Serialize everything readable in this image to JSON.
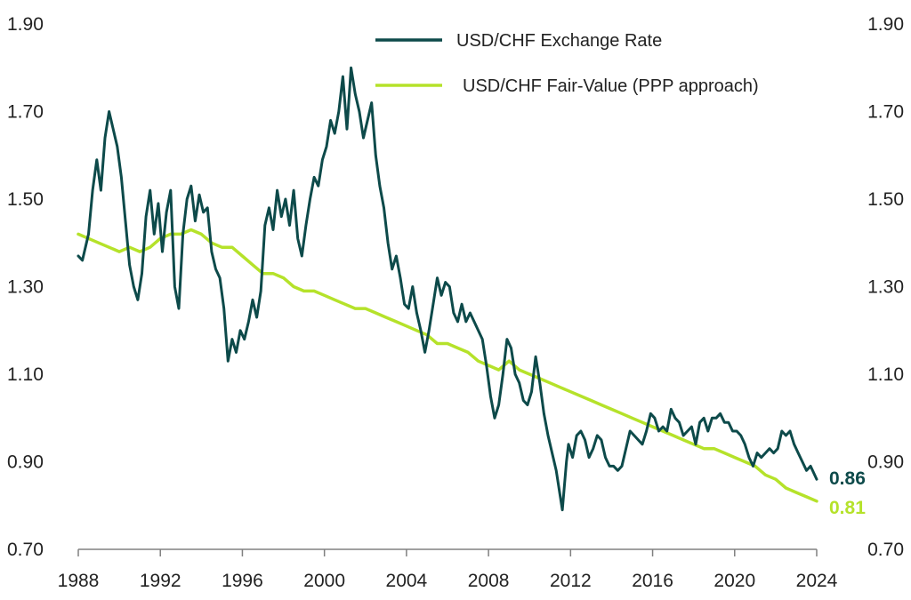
{
  "chart_data": {
    "type": "line",
    "title": "",
    "xlabel": "",
    "ylabel": "",
    "xlim": [
      1988,
      2024
    ],
    "ylim": [
      0.7,
      1.9
    ],
    "y_ticks": [
      "0.70",
      "0.90",
      "1.10",
      "1.30",
      "1.50",
      "1.70",
      "1.90"
    ],
    "x_ticks": [
      "1988",
      "1992",
      "1996",
      "2000",
      "2004",
      "2008",
      "2012",
      "2016",
      "2020",
      "2024"
    ],
    "legend_position": "top-right",
    "series": [
      {
        "name": "USD/CHF Exchange Rate",
        "color": "#0d4a4a",
        "end_label": "0.86",
        "points": [
          [
            1988.0,
            1.37
          ],
          [
            1988.2,
            1.36
          ],
          [
            1988.5,
            1.42
          ],
          [
            1988.7,
            1.52
          ],
          [
            1988.9,
            1.59
          ],
          [
            1989.1,
            1.52
          ],
          [
            1989.3,
            1.64
          ],
          [
            1989.5,
            1.7
          ],
          [
            1989.7,
            1.66
          ],
          [
            1989.9,
            1.62
          ],
          [
            1990.1,
            1.55
          ],
          [
            1990.3,
            1.45
          ],
          [
            1990.5,
            1.35
          ],
          [
            1990.7,
            1.3
          ],
          [
            1990.9,
            1.27
          ],
          [
            1991.1,
            1.33
          ],
          [
            1991.3,
            1.46
          ],
          [
            1991.5,
            1.52
          ],
          [
            1991.7,
            1.42
          ],
          [
            1991.9,
            1.49
          ],
          [
            1992.1,
            1.38
          ],
          [
            1992.3,
            1.47
          ],
          [
            1992.5,
            1.52
          ],
          [
            1992.7,
            1.3
          ],
          [
            1992.9,
            1.25
          ],
          [
            1993.1,
            1.42
          ],
          [
            1993.3,
            1.5
          ],
          [
            1993.5,
            1.53
          ],
          [
            1993.7,
            1.45
          ],
          [
            1993.9,
            1.51
          ],
          [
            1994.1,
            1.47
          ],
          [
            1994.3,
            1.48
          ],
          [
            1994.5,
            1.38
          ],
          [
            1994.7,
            1.34
          ],
          [
            1994.9,
            1.32
          ],
          [
            1995.1,
            1.25
          ],
          [
            1995.3,
            1.13
          ],
          [
            1995.5,
            1.18
          ],
          [
            1995.7,
            1.15
          ],
          [
            1995.9,
            1.2
          ],
          [
            1996.1,
            1.18
          ],
          [
            1996.3,
            1.22
          ],
          [
            1996.5,
            1.27
          ],
          [
            1996.7,
            1.23
          ],
          [
            1996.9,
            1.29
          ],
          [
            1997.1,
            1.44
          ],
          [
            1997.3,
            1.48
          ],
          [
            1997.5,
            1.43
          ],
          [
            1997.7,
            1.52
          ],
          [
            1997.9,
            1.46
          ],
          [
            1998.1,
            1.5
          ],
          [
            1998.3,
            1.44
          ],
          [
            1998.5,
            1.52
          ],
          [
            1998.7,
            1.41
          ],
          [
            1998.9,
            1.37
          ],
          [
            1999.1,
            1.44
          ],
          [
            1999.3,
            1.5
          ],
          [
            1999.5,
            1.55
          ],
          [
            1999.7,
            1.53
          ],
          [
            1999.9,
            1.59
          ],
          [
            2000.1,
            1.62
          ],
          [
            2000.3,
            1.68
          ],
          [
            2000.5,
            1.65
          ],
          [
            2000.7,
            1.7
          ],
          [
            2000.9,
            1.78
          ],
          [
            2001.1,
            1.66
          ],
          [
            2001.3,
            1.8
          ],
          [
            2001.5,
            1.74
          ],
          [
            2001.7,
            1.7
          ],
          [
            2001.9,
            1.64
          ],
          [
            2002.1,
            1.68
          ],
          [
            2002.3,
            1.72
          ],
          [
            2002.5,
            1.6
          ],
          [
            2002.7,
            1.53
          ],
          [
            2002.9,
            1.48
          ],
          [
            2003.1,
            1.4
          ],
          [
            2003.3,
            1.34
          ],
          [
            2003.5,
            1.37
          ],
          [
            2003.7,
            1.32
          ],
          [
            2003.9,
            1.26
          ],
          [
            2004.1,
            1.25
          ],
          [
            2004.3,
            1.3
          ],
          [
            2004.5,
            1.24
          ],
          [
            2004.7,
            1.2
          ],
          [
            2004.9,
            1.15
          ],
          [
            2005.1,
            1.2
          ],
          [
            2005.3,
            1.26
          ],
          [
            2005.5,
            1.32
          ],
          [
            2005.7,
            1.28
          ],
          [
            2005.9,
            1.31
          ],
          [
            2006.1,
            1.3
          ],
          [
            2006.3,
            1.24
          ],
          [
            2006.5,
            1.22
          ],
          [
            2006.7,
            1.26
          ],
          [
            2006.9,
            1.22
          ],
          [
            2007.1,
            1.24
          ],
          [
            2007.3,
            1.22
          ],
          [
            2007.5,
            1.2
          ],
          [
            2007.7,
            1.18
          ],
          [
            2007.9,
            1.12
          ],
          [
            2008.1,
            1.05
          ],
          [
            2008.3,
            1.0
          ],
          [
            2008.5,
            1.03
          ],
          [
            2008.7,
            1.1
          ],
          [
            2008.9,
            1.18
          ],
          [
            2009.1,
            1.16
          ],
          [
            2009.3,
            1.1
          ],
          [
            2009.5,
            1.08
          ],
          [
            2009.7,
            1.04
          ],
          [
            2009.9,
            1.03
          ],
          [
            2010.1,
            1.06
          ],
          [
            2010.3,
            1.14
          ],
          [
            2010.5,
            1.08
          ],
          [
            2010.7,
            1.01
          ],
          [
            2010.9,
            0.96
          ],
          [
            2011.1,
            0.92
          ],
          [
            2011.3,
            0.88
          ],
          [
            2011.5,
            0.82
          ],
          [
            2011.6,
            0.79
          ],
          [
            2011.8,
            0.9
          ],
          [
            2011.9,
            0.94
          ],
          [
            2012.1,
            0.91
          ],
          [
            2012.3,
            0.96
          ],
          [
            2012.5,
            0.97
          ],
          [
            2012.7,
            0.95
          ],
          [
            2012.9,
            0.91
          ],
          [
            2013.1,
            0.93
          ],
          [
            2013.3,
            0.96
          ],
          [
            2013.5,
            0.95
          ],
          [
            2013.7,
            0.91
          ],
          [
            2013.9,
            0.89
          ],
          [
            2014.1,
            0.89
          ],
          [
            2014.3,
            0.88
          ],
          [
            2014.5,
            0.89
          ],
          [
            2014.7,
            0.93
          ],
          [
            2014.9,
            0.97
          ],
          [
            2015.1,
            0.96
          ],
          [
            2015.3,
            0.95
          ],
          [
            2015.5,
            0.94
          ],
          [
            2015.7,
            0.97
          ],
          [
            2015.9,
            1.01
          ],
          [
            2016.1,
            1.0
          ],
          [
            2016.3,
            0.97
          ],
          [
            2016.5,
            0.98
          ],
          [
            2016.7,
            0.97
          ],
          [
            2016.9,
            1.02
          ],
          [
            2017.1,
            1.0
          ],
          [
            2017.3,
            0.99
          ],
          [
            2017.5,
            0.96
          ],
          [
            2017.7,
            0.97
          ],
          [
            2017.9,
            0.98
          ],
          [
            2018.1,
            0.94
          ],
          [
            2018.3,
            0.99
          ],
          [
            2018.5,
            1.0
          ],
          [
            2018.7,
            0.97
          ],
          [
            2018.9,
            1.0
          ],
          [
            2019.1,
            1.0
          ],
          [
            2019.3,
            1.01
          ],
          [
            2019.5,
            0.99
          ],
          [
            2019.7,
            0.99
          ],
          [
            2019.9,
            0.97
          ],
          [
            2020.1,
            0.97
          ],
          [
            2020.3,
            0.96
          ],
          [
            2020.5,
            0.94
          ],
          [
            2020.7,
            0.91
          ],
          [
            2020.9,
            0.89
          ],
          [
            2021.1,
            0.92
          ],
          [
            2021.3,
            0.91
          ],
          [
            2021.5,
            0.92
          ],
          [
            2021.7,
            0.93
          ],
          [
            2021.9,
            0.92
          ],
          [
            2022.1,
            0.93
          ],
          [
            2022.3,
            0.97
          ],
          [
            2022.5,
            0.96
          ],
          [
            2022.7,
            0.97
          ],
          [
            2022.9,
            0.94
          ],
          [
            2023.1,
            0.92
          ],
          [
            2023.3,
            0.9
          ],
          [
            2023.5,
            0.88
          ],
          [
            2023.7,
            0.89
          ],
          [
            2023.9,
            0.87
          ],
          [
            2024.0,
            0.86
          ]
        ]
      },
      {
        "name": "USD/CHF Fair-Value (PPP approach)",
        "color": "#b5e22a",
        "end_label": "0.81",
        "points": [
          [
            1988.0,
            1.42
          ],
          [
            1988.5,
            1.41
          ],
          [
            1989.0,
            1.4
          ],
          [
            1989.5,
            1.39
          ],
          [
            1990.0,
            1.38
          ],
          [
            1990.5,
            1.39
          ],
          [
            1991.0,
            1.38
          ],
          [
            1991.5,
            1.39
          ],
          [
            1992.0,
            1.41
          ],
          [
            1992.5,
            1.42
          ],
          [
            1993.0,
            1.42
          ],
          [
            1993.5,
            1.43
          ],
          [
            1994.0,
            1.42
          ],
          [
            1994.5,
            1.4
          ],
          [
            1995.0,
            1.39
          ],
          [
            1995.5,
            1.39
          ],
          [
            1996.0,
            1.37
          ],
          [
            1996.5,
            1.35
          ],
          [
            1997.0,
            1.33
          ],
          [
            1997.5,
            1.33
          ],
          [
            1998.0,
            1.32
          ],
          [
            1998.5,
            1.3
          ],
          [
            1999.0,
            1.29
          ],
          [
            1999.5,
            1.29
          ],
          [
            2000.0,
            1.28
          ],
          [
            2000.5,
            1.27
          ],
          [
            2001.0,
            1.26
          ],
          [
            2001.5,
            1.25
          ],
          [
            2002.0,
            1.25
          ],
          [
            2002.5,
            1.24
          ],
          [
            2003.0,
            1.23
          ],
          [
            2003.5,
            1.22
          ],
          [
            2004.0,
            1.21
          ],
          [
            2004.5,
            1.2
          ],
          [
            2005.0,
            1.19
          ],
          [
            2005.5,
            1.17
          ],
          [
            2006.0,
            1.17
          ],
          [
            2006.5,
            1.16
          ],
          [
            2007.0,
            1.15
          ],
          [
            2007.5,
            1.13
          ],
          [
            2008.0,
            1.12
          ],
          [
            2008.5,
            1.11
          ],
          [
            2009.0,
            1.13
          ],
          [
            2009.5,
            1.11
          ],
          [
            2010.0,
            1.1
          ],
          [
            2010.5,
            1.09
          ],
          [
            2011.0,
            1.08
          ],
          [
            2011.5,
            1.07
          ],
          [
            2012.0,
            1.06
          ],
          [
            2012.5,
            1.05
          ],
          [
            2013.0,
            1.04
          ],
          [
            2013.5,
            1.03
          ],
          [
            2014.0,
            1.02
          ],
          [
            2014.5,
            1.01
          ],
          [
            2015.0,
            1.0
          ],
          [
            2015.5,
            0.99
          ],
          [
            2016.0,
            0.98
          ],
          [
            2016.5,
            0.97
          ],
          [
            2017.0,
            0.96
          ],
          [
            2017.5,
            0.95
          ],
          [
            2018.0,
            0.94
          ],
          [
            2018.5,
            0.93
          ],
          [
            2019.0,
            0.93
          ],
          [
            2019.5,
            0.92
          ],
          [
            2020.0,
            0.91
          ],
          [
            2020.5,
            0.9
          ],
          [
            2021.0,
            0.89
          ],
          [
            2021.5,
            0.87
          ],
          [
            2022.0,
            0.86
          ],
          [
            2022.5,
            0.84
          ],
          [
            2023.0,
            0.83
          ],
          [
            2023.5,
            0.82
          ],
          [
            2024.0,
            0.81
          ]
        ]
      }
    ]
  }
}
